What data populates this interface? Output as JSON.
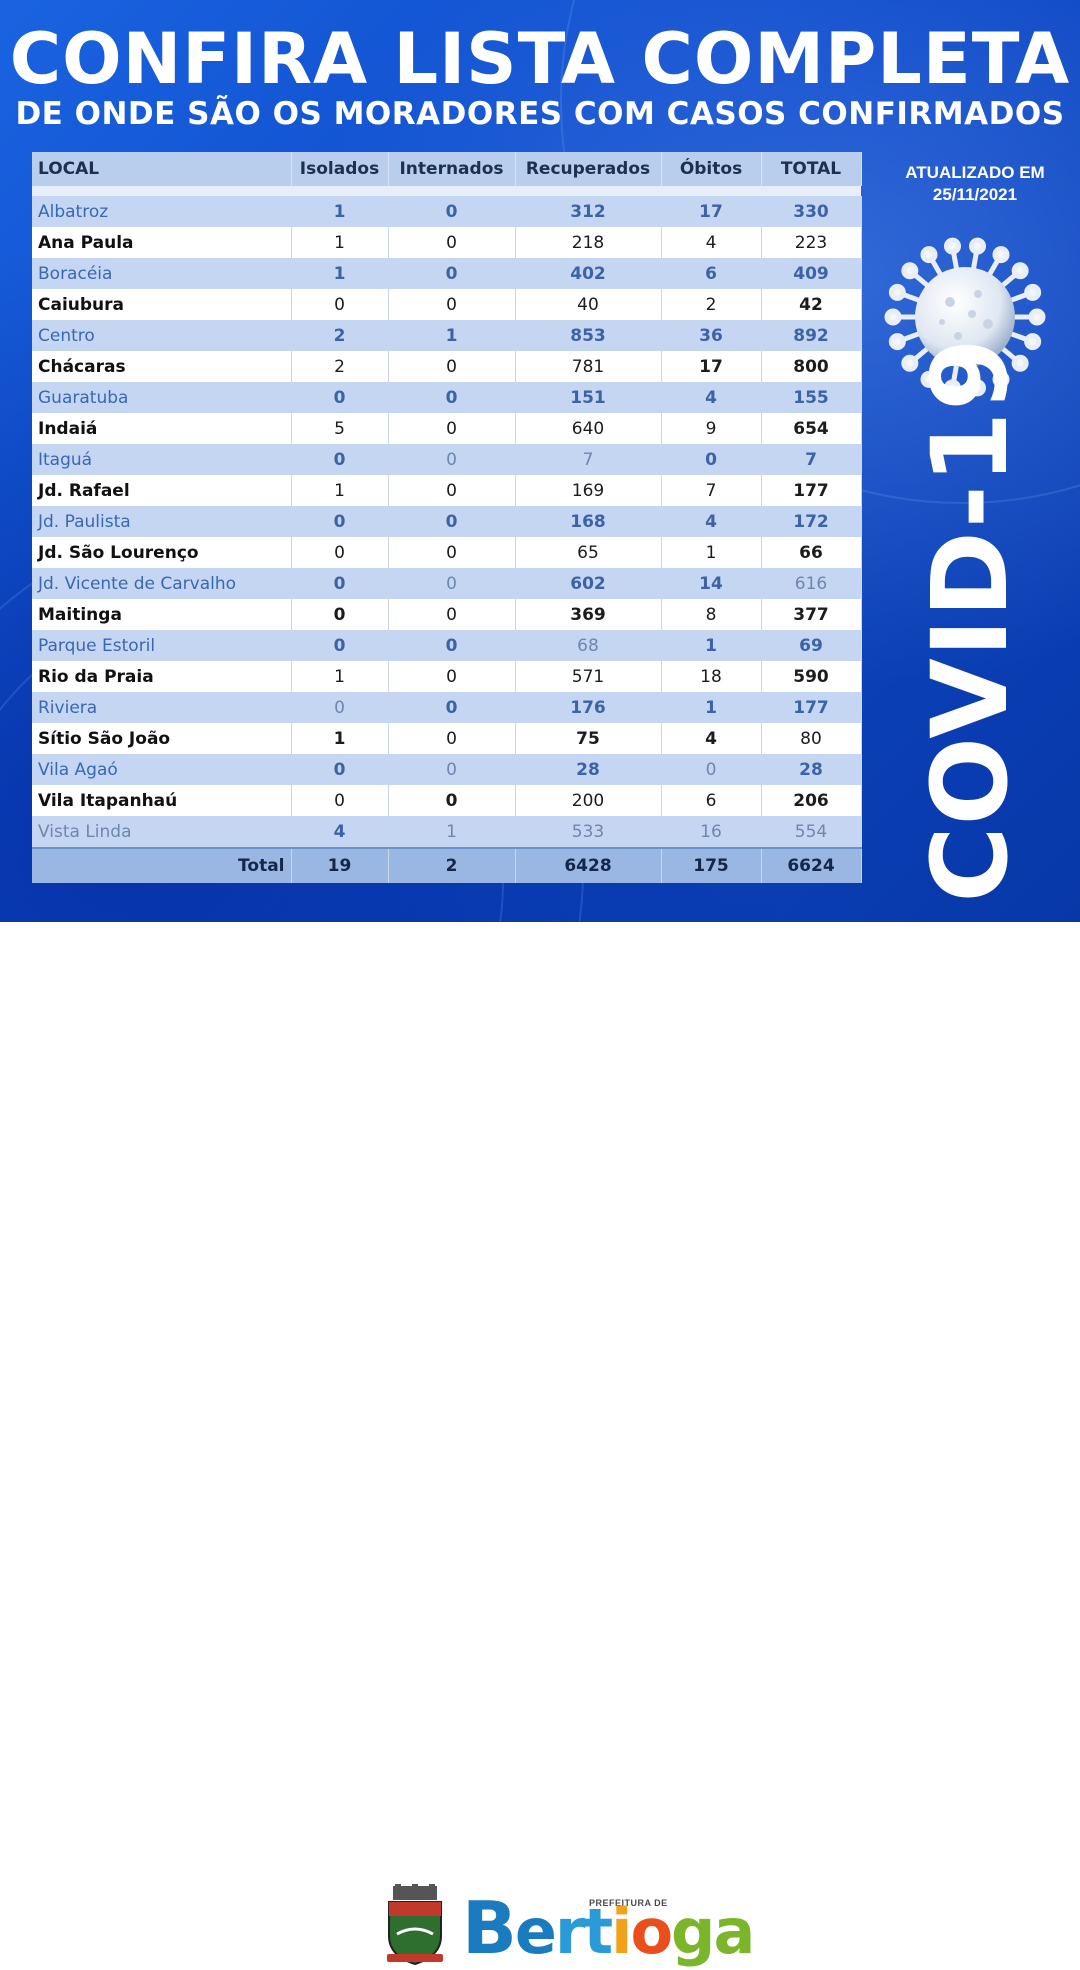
{
  "header": {
    "title": "CONFIRA LISTA COMPLETA",
    "subtitle": "DE ONDE SÃO OS MORADORES COM CASOS CONFIRMADOS"
  },
  "updated": {
    "line1": "ATUALIZADO EM",
    "line2": "25/11/2021"
  },
  "side_label": "COVID-19",
  "colors": {
    "background_blue": "#0d49c9",
    "table_header": "#b9cdec",
    "row_alt": "#c4d6f1",
    "total_row": "#9ab6e2"
  },
  "icons": {
    "virus": "coronavirus-illustration",
    "crest": "municipal-coat-of-arms"
  },
  "table": {
    "headers": [
      "LOCAL",
      "Isolados",
      "Internados",
      "Recuperados",
      "Óbitos",
      "TOTAL"
    ],
    "rows": [
      [
        "Albatroz",
        "1",
        "0",
        "312",
        "17",
        "330"
      ],
      [
        "Ana Paula",
        "1",
        "0",
        "218",
        "4",
        "223"
      ],
      [
        "Boracéia",
        "1",
        "0",
        "402",
        "6",
        "409"
      ],
      [
        "Caiubura",
        "0",
        "0",
        "40",
        "2",
        "42"
      ],
      [
        "Centro",
        "2",
        "1",
        "853",
        "36",
        "892"
      ],
      [
        "Chácaras",
        "2",
        "0",
        "781",
        "17",
        "800"
      ],
      [
        "Guaratuba",
        "0",
        "0",
        "151",
        "4",
        "155"
      ],
      [
        "Indaiá",
        "5",
        "0",
        "640",
        "9",
        "654"
      ],
      [
        "Itaguá",
        "0",
        "0",
        "7",
        "0",
        "7"
      ],
      [
        "Jd. Rafael",
        "1",
        "0",
        "169",
        "7",
        "177"
      ],
      [
        "Jd. Paulista",
        "0",
        "0",
        "168",
        "4",
        "172"
      ],
      [
        "Jd. São Lourenço",
        "0",
        "0",
        "65",
        "1",
        "66"
      ],
      [
        "Jd. Vicente de Carvalho",
        "0",
        "0",
        "602",
        "14",
        "616"
      ],
      [
        "Maitinga",
        "0",
        "0",
        "369",
        "8",
        "377"
      ],
      [
        "Parque Estoril",
        "0",
        "0",
        "68",
        "1",
        "69"
      ],
      [
        "Rio da Praia",
        "1",
        "0",
        "571",
        "18",
        "590"
      ],
      [
        "Riviera",
        "0",
        "0",
        "176",
        "1",
        "177"
      ],
      [
        "Sítio São João",
        "1",
        "0",
        "75",
        "4",
        "80"
      ],
      [
        "Vila Agaó",
        "0",
        "0",
        "28",
        "0",
        "28"
      ],
      [
        "Vila Itapanhaú",
        "0",
        "0",
        "200",
        "6",
        "206"
      ],
      [
        "Vista Linda",
        "4",
        "1",
        "533",
        "16",
        "554"
      ]
    ],
    "total": [
      "Total",
      "19",
      "2",
      "6428",
      "175",
      "6624"
    ]
  },
  "footer": {
    "prefeitura_label": "PREFEITURA DE",
    "brand_letters": [
      "B",
      "e",
      "r",
      "t",
      "i",
      "o",
      "g",
      "a"
    ],
    "brand_colors": [
      "#1b7bbf",
      "#1b7bbf",
      "#2a9bd6",
      "#2a9bd6",
      "#f0a21a",
      "#e94e1b",
      "#7ab52a",
      "#7ab52a"
    ]
  }
}
